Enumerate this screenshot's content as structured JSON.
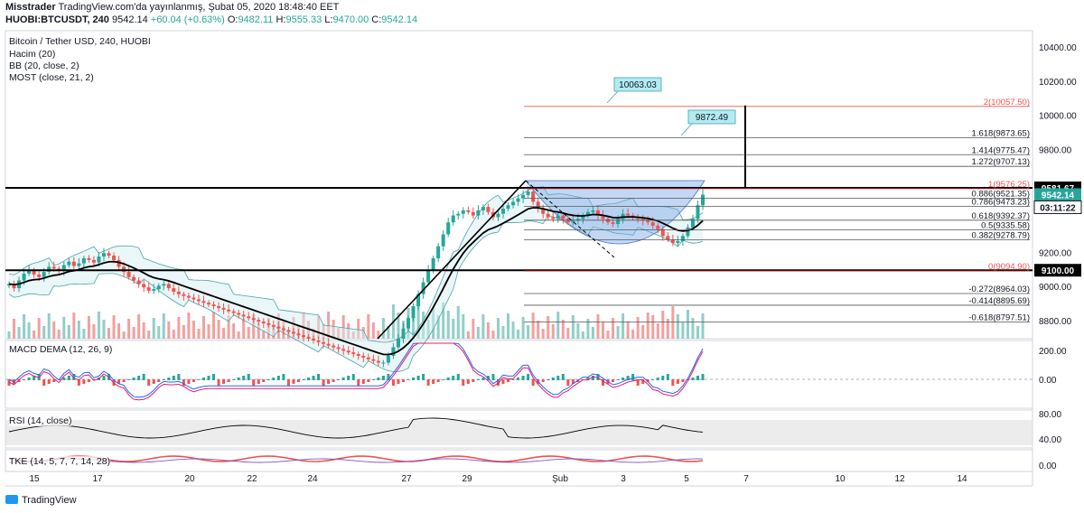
{
  "header": {
    "author": "Misstrader",
    "published": "TradingView.com'da yayınlanmış, Şubat 05, 2020 18:48:40 EET",
    "symbol": "HUOBI:BTCUSDT, 240",
    "last": "9542.14",
    "change": "+60.04 (+0.63%)",
    "o_label": "O:",
    "o": "9482.11",
    "h_label": "H:",
    "h": "9555.33",
    "l_label": "L:",
    "l": "9470.00",
    "c_label": "C:",
    "c": "9542.14"
  },
  "legend": {
    "title": "Bitcoin / Tether USD, 240, HUOBI",
    "volume": "Hacim (20)",
    "bb": "BB (20, close, 2)",
    "most": "MOST (close, 21, 2)"
  },
  "panes": {
    "macd": "MACD DEMA (12, 26, 9)",
    "rsi": "RSI (14, close)",
    "tke": "TKE (14, 5, 7, 7, 14, 28)"
  },
  "footer": {
    "brand": "TradingView"
  },
  "colors": {
    "up": "#26a69a",
    "down": "#ef5350",
    "bb_fill": "#d6eef0",
    "bb_line": "#4aa3a8",
    "fib_text": "#131722",
    "fib_red": "#ef5350",
    "callout": "#b2ebf2",
    "cup": "#7aa7e8"
  },
  "chart_data": [
    {
      "type": "candlestick",
      "name_pane": "price",
      "x_tick_labels": [
        "15",
        "17",
        "20",
        "22",
        "24",
        "27",
        "29",
        "Şub",
        "3",
        "5",
        "7",
        "10",
        "12",
        "14"
      ],
      "y_tick_labels": [
        "10400.00",
        "10200.00",
        "10000.00",
        "9800.00",
        "9200.00",
        "9000.00",
        "8800.00"
      ],
      "ylim": [
        8700,
        10500
      ],
      "price_badges": [
        "9581.67",
        "9542.14",
        "03:11:22",
        "9100.00"
      ],
      "horizontal_levels": [
        9581.67,
        9100.0
      ],
      "fib_levels": [
        {
          "label": "2(10057.50)",
          "value": 10057.5
        },
        {
          "label": "1.618(9873.65)",
          "value": 9873.65
        },
        {
          "label": "1.414(9775.47)",
          "value": 9775.47
        },
        {
          "label": "1.272(9707.13)",
          "value": 9707.13
        },
        {
          "label": "1(9576.25)",
          "value": 9576.25
        },
        {
          "label": "0.886(9521.35)",
          "value": 9521.35
        },
        {
          "label": "0.786(9473.23)",
          "value": 9473.23
        },
        {
          "label": "0.618(9392.37)",
          "value": 9392.37
        },
        {
          "label": "0.5(9335.58)",
          "value": 9335.58
        },
        {
          "label": "0.382(9278.79)",
          "value": 9278.79
        },
        {
          "label": "0(9094.90)",
          "value": 9094.9
        },
        {
          "label": "-0.272(8964.03)",
          "value": 8964.03
        },
        {
          "label": "-0.414(8895.69)",
          "value": 8895.69
        },
        {
          "label": "-0.618(8797.51)",
          "value": 8797.51
        }
      ],
      "callouts": [
        "10063.03",
        "9872.49"
      ],
      "close_series": [
        9020,
        8995,
        9040,
        9080,
        9100,
        9075,
        9060,
        9090,
        9120,
        9110,
        9095,
        9130,
        9150,
        9125,
        9140,
        9170,
        9160,
        9145,
        9180,
        9200,
        9185,
        9160,
        9120,
        9090,
        9060,
        9040,
        9020,
        9000,
        8980,
        8990,
        9010,
        9020,
        8995,
        8975,
        8960,
        8950,
        8940,
        8930,
        8920,
        8910,
        8900,
        8890,
        8880,
        8870,
        8860,
        8850,
        8840,
        8830,
        8820,
        8810,
        8800,
        8790,
        8780,
        8770,
        8760,
        8750,
        8740,
        8730,
        8720,
        8710,
        8700,
        8690,
        8680,
        8670,
        8660,
        8650,
        8640,
        8630,
        8620,
        8610,
        8600,
        8590,
        8580,
        8570,
        8560,
        8560,
        8600,
        8650,
        8700,
        8760,
        8820,
        8890,
        8960,
        9030,
        9100,
        9170,
        9240,
        9310,
        9380,
        9420,
        9430,
        9450,
        9440,
        9420,
        9450,
        9470,
        9440,
        9410,
        9430,
        9460,
        9480,
        9500,
        9520,
        9540,
        9560,
        9500,
        9460,
        9430,
        9410,
        9400,
        9420,
        9400,
        9380,
        9390,
        9400,
        9420,
        9440,
        9450,
        9420,
        9400,
        9380,
        9370,
        9400,
        9430,
        9420,
        9410,
        9400,
        9390,
        9380,
        9360,
        9340,
        9300,
        9280,
        9260,
        9270,
        9300,
        9350,
        9400,
        9480,
        9542
      ]
    },
    {
      "type": "bar",
      "name_pane": "macd",
      "y_tick_labels": [
        "200.00",
        "0.00"
      ]
    },
    {
      "type": "line",
      "name_pane": "rsi",
      "y_tick_labels": [
        "80.00",
        "40.00"
      ]
    },
    {
      "type": "line",
      "name_pane": "tke",
      "y_tick_labels": [
        "0.00"
      ]
    }
  ]
}
